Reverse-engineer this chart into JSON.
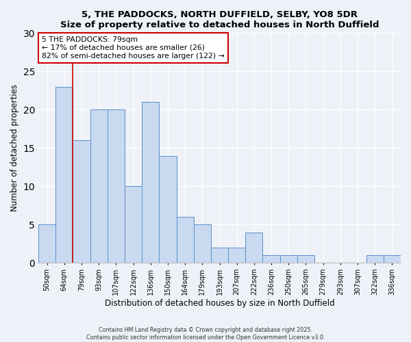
{
  "title_line1": "5, THE PADDOCKS, NORTH DUFFIELD, SELBY, YO8 5DR",
  "title_line2": "Size of property relative to detached houses in North Duffield",
  "xlabel": "Distribution of detached houses by size in North Duffield",
  "ylabel": "Number of detached properties",
  "categories": [
    "50sqm",
    "64sqm",
    "79sqm",
    "93sqm",
    "107sqm",
    "122sqm",
    "136sqm",
    "150sqm",
    "164sqm",
    "179sqm",
    "193sqm",
    "207sqm",
    "222sqm",
    "236sqm",
    "250sqm",
    "265sqm",
    "279sqm",
    "293sqm",
    "307sqm",
    "322sqm",
    "336sqm"
  ],
  "values": [
    5,
    23,
    16,
    20,
    20,
    10,
    21,
    14,
    6,
    5,
    2,
    2,
    4,
    1,
    1,
    1,
    0,
    0,
    0,
    1,
    1
  ],
  "bar_color": "#c8d9f0",
  "bar_edge_color": "#5b8fc9",
  "highlight_bar_index": 1,
  "highlight_line_color": "#cc0000",
  "annotation_text": "5 THE PADDOCKS: 79sqm\n← 17% of detached houses are smaller (26)\n82% of semi-detached houses are larger (122) →",
  "annotation_box_color": "#ffffff",
  "annotation_box_edge_color": "#cc0000",
  "ylim": [
    0,
    30
  ],
  "yticks": [
    0,
    5,
    10,
    15,
    20,
    25,
    30
  ],
  "background_color": "#eef2f8",
  "grid_color": "#ffffff",
  "footer_text": "Contains HM Land Registry data © Crown copyright and database right 2025.\nContains public sector information licensed under the Open Government Licence v3.0."
}
